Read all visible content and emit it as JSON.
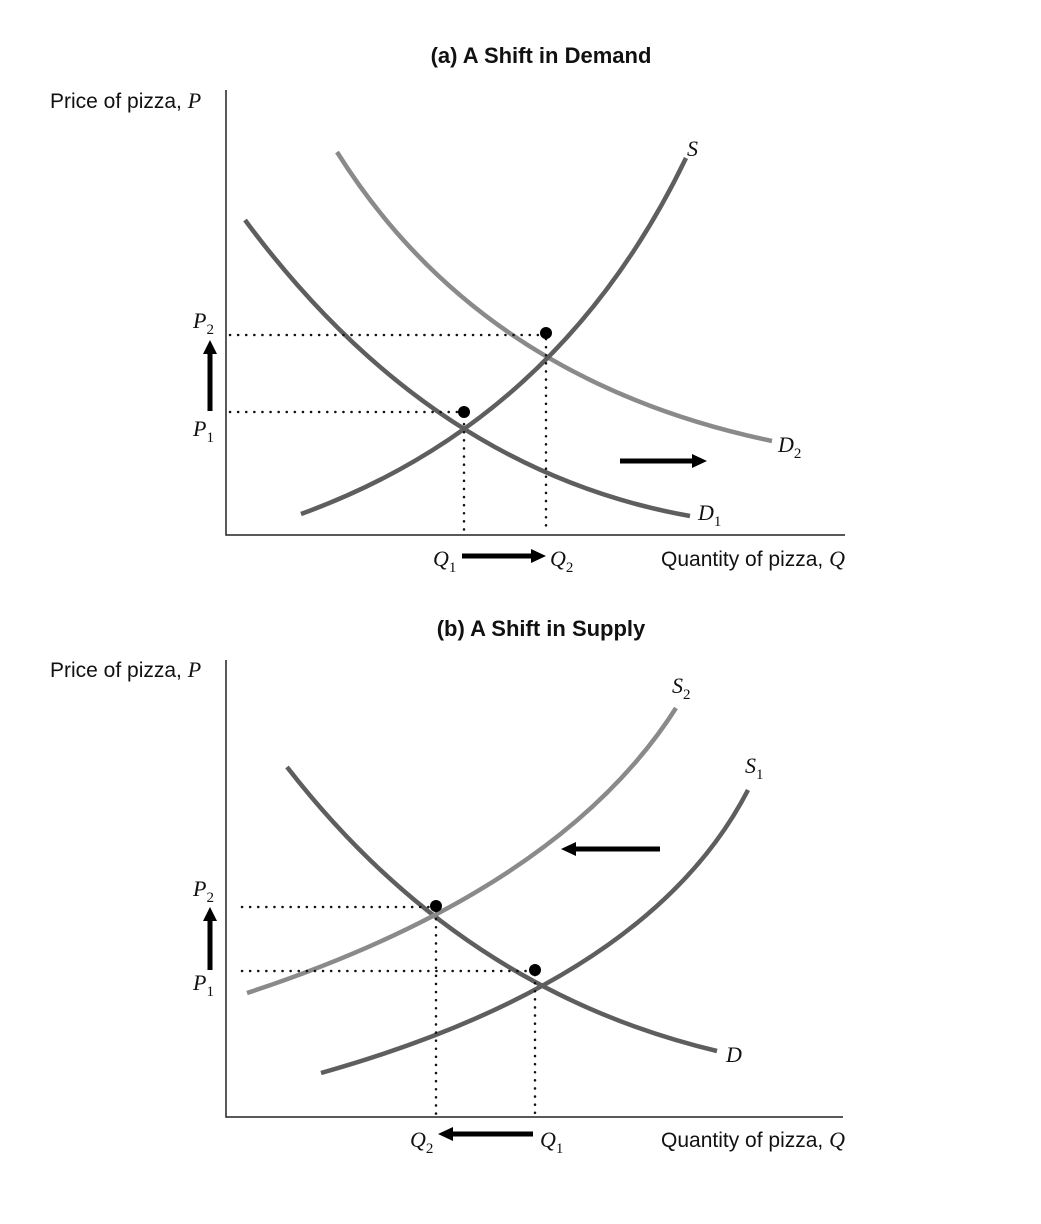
{
  "panel_a": {
    "title": "(a) A Shift in Demand",
    "y_axis_label": "Price of pizza, ",
    "y_axis_var": "P",
    "x_axis_label": "Quantity of pizza, ",
    "x_axis_var": "Q",
    "curves": {
      "supply": {
        "letter": "S",
        "sub": "",
        "color": "#5e5e5e"
      },
      "demand_initial": {
        "letter": "D",
        "sub": "1",
        "color": "#5e5e5e"
      },
      "demand_new": {
        "letter": "D",
        "sub": "2",
        "color": "#8a8a8a"
      }
    },
    "price_labels": {
      "low": {
        "letter": "P",
        "sub": "1"
      },
      "high": {
        "letter": "P",
        "sub": "2"
      }
    },
    "quantity_labels": {
      "first": {
        "letter": "Q",
        "sub": "1"
      },
      "second": {
        "letter": "Q",
        "sub": "2"
      }
    },
    "shift_direction": "right"
  },
  "panel_b": {
    "title": "(b) A Shift in Supply",
    "y_axis_label": "Price of pizza, ",
    "y_axis_var": "P",
    "x_axis_label": "Quantity of pizza, ",
    "x_axis_var": "Q",
    "curves": {
      "supply_initial": {
        "letter": "S",
        "sub": "1",
        "color": "#5e5e5e"
      },
      "supply_new": {
        "letter": "S",
        "sub": "2",
        "color": "#8a8a8a"
      },
      "demand": {
        "letter": "D",
        "sub": "",
        "color": "#5e5e5e"
      }
    },
    "price_labels": {
      "low": {
        "letter": "P",
        "sub": "1"
      },
      "high": {
        "letter": "P",
        "sub": "2"
      }
    },
    "quantity_labels": {
      "first": {
        "letter": "Q",
        "sub": "2"
      },
      "second": {
        "letter": "Q",
        "sub": "1"
      }
    },
    "shift_direction": "left"
  }
}
